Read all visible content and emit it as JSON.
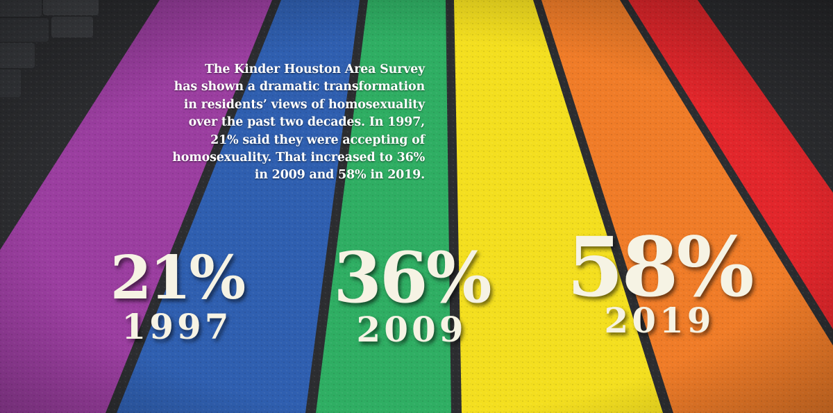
{
  "caption": {
    "lines": [
      "The Kinder Houston Area Survey",
      "has shown a dramatic transformation",
      "in residents’ views of homosexuality",
      "over the past two decades. In 1997,",
      "21% said they were accepting of",
      "homosexuality. That increased to 36%",
      "in 2009 and 58% in 2019."
    ]
  },
  "stats": [
    {
      "percent": "21%",
      "year": "1997"
    },
    {
      "percent": "36%",
      "year": "2009"
    },
    {
      "percent": "58%",
      "year": "2019"
    }
  ],
  "colors": {
    "asphalt": "#2a2b2e",
    "purple": "#9b3ea0",
    "blue": "#2f5fb0",
    "green": "#2fae63",
    "yellow": "#f4df1f",
    "orange": "#f07c28",
    "red": "#e2262b",
    "stat_text": "#f6f3e4",
    "caption_text": "#ffffff"
  }
}
